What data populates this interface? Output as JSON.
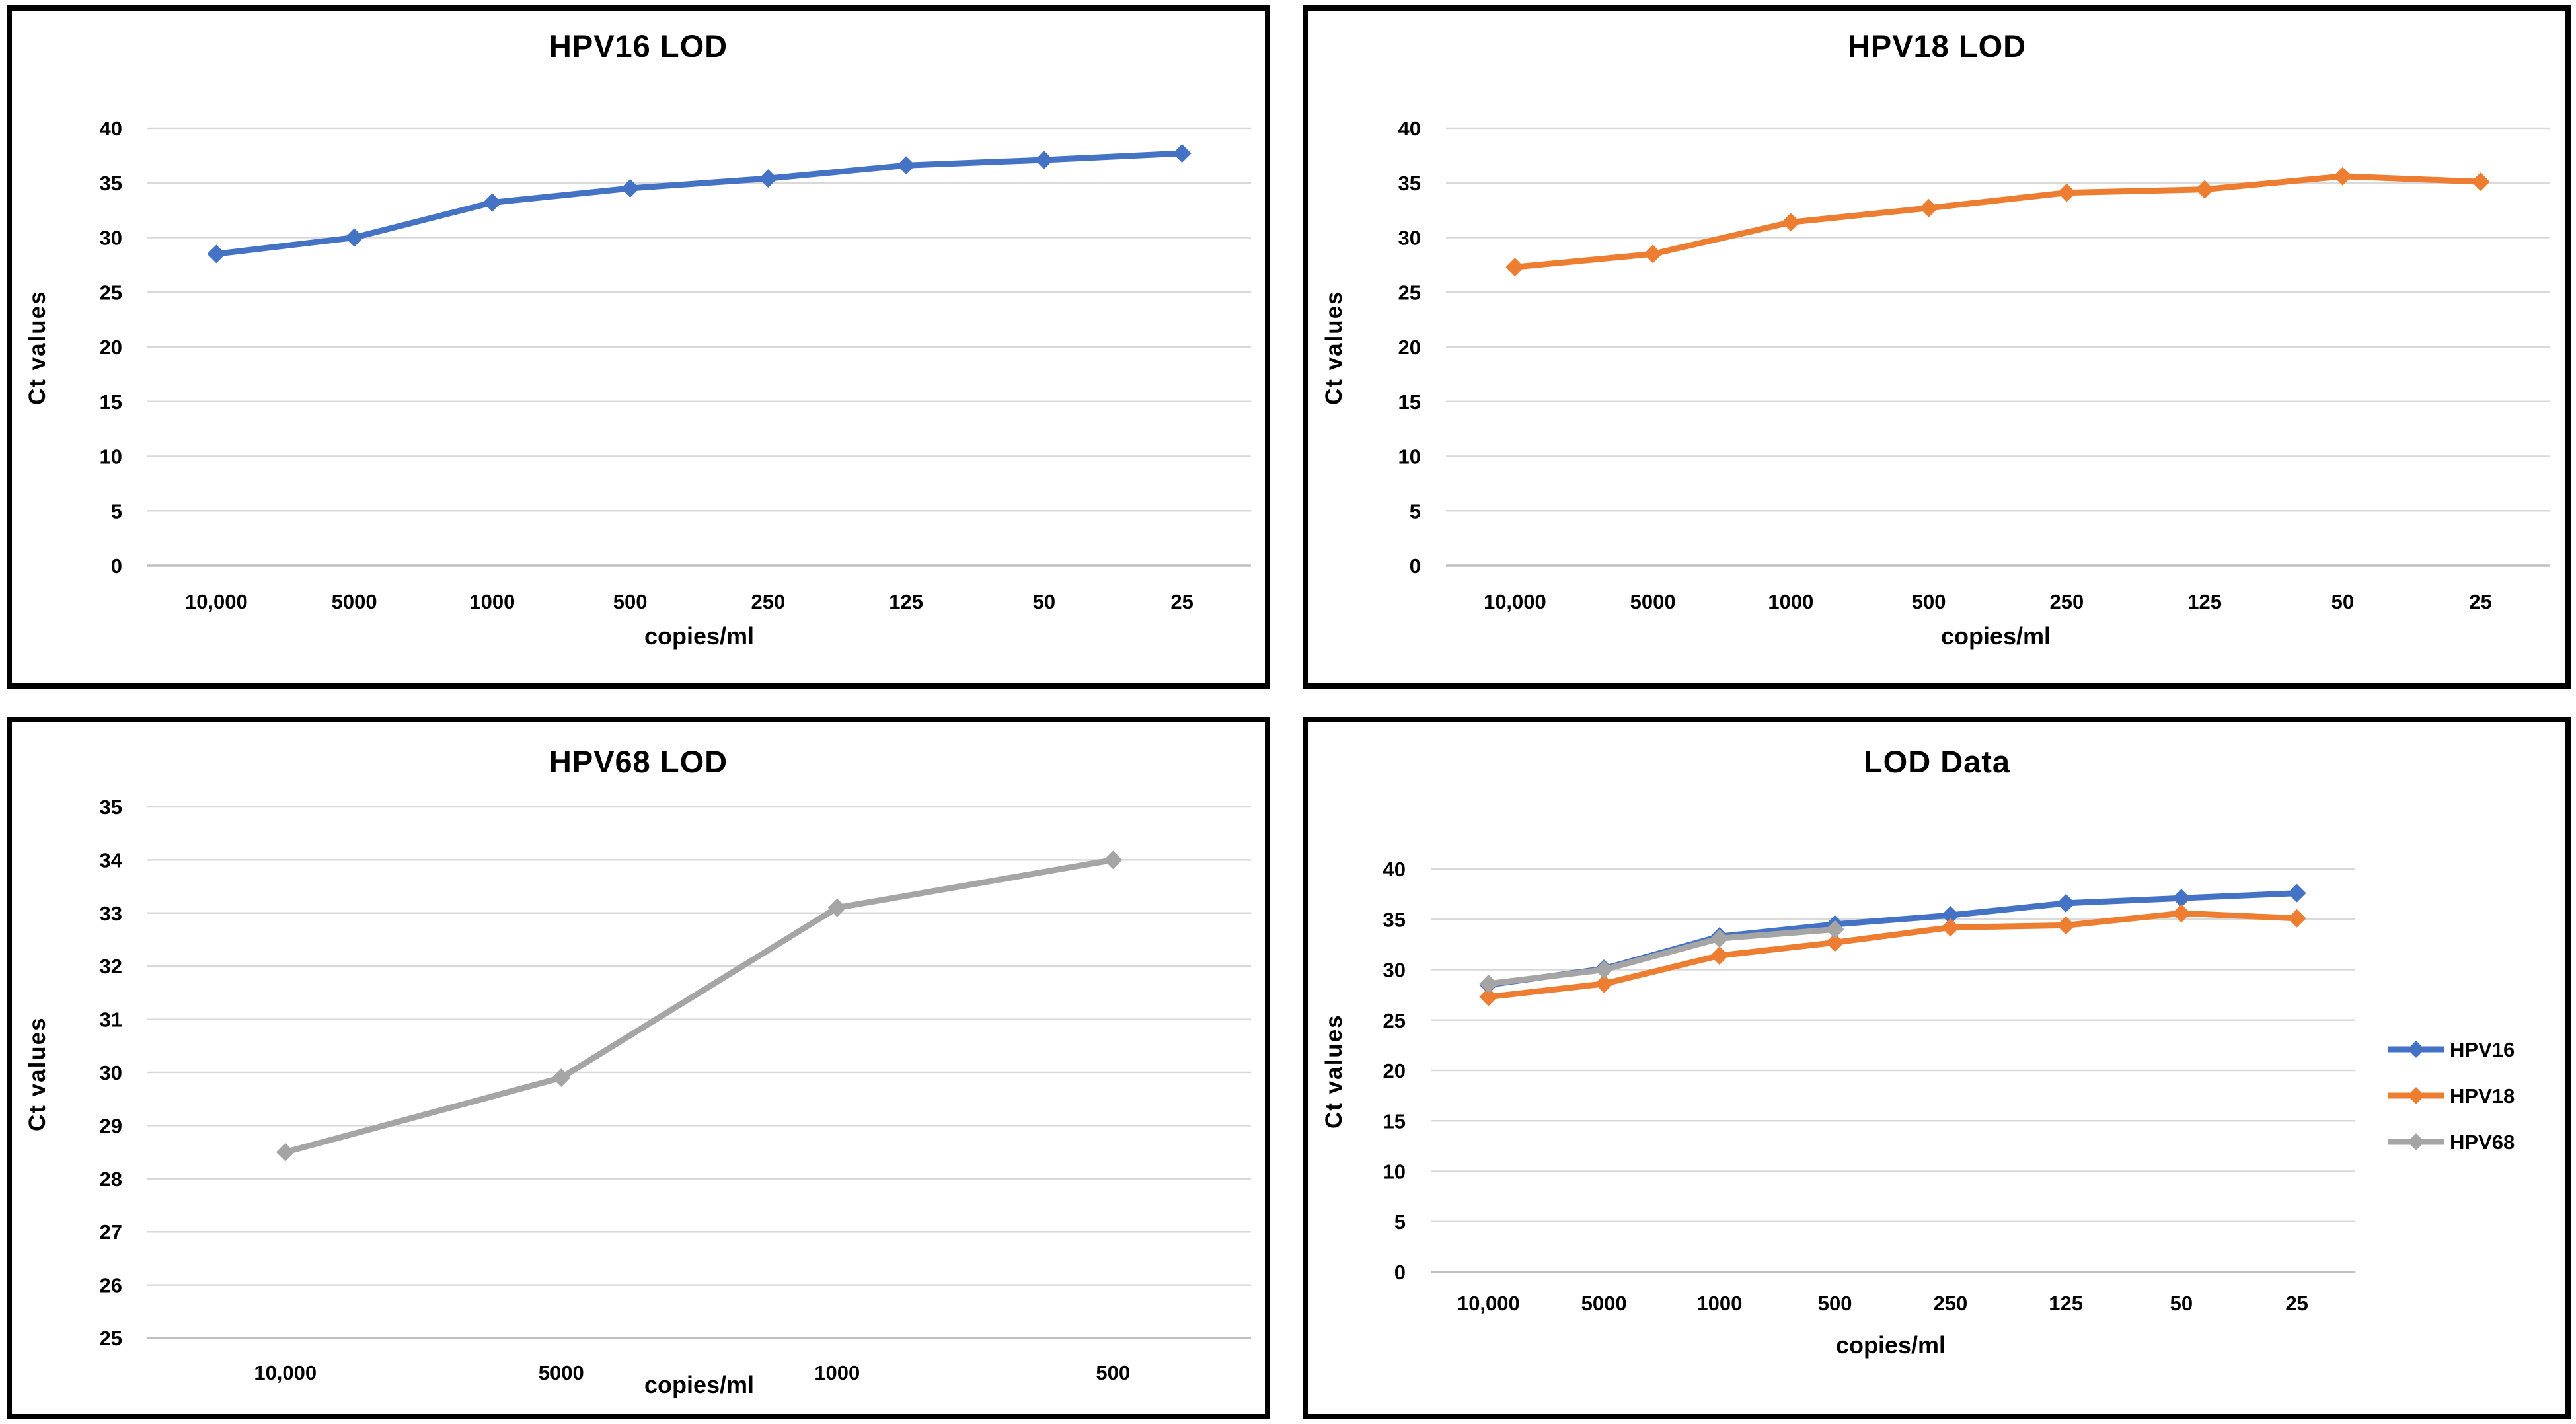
{
  "page": {
    "background": "#FFFFFF",
    "panel_border_color": "#000000",
    "gridline_color": "#D9D9D9",
    "axis_line_color": "#BFBFBF",
    "text_color": "#000000"
  },
  "chart_data": [
    {
      "type": "line",
      "title": "HPV16 LOD",
      "xlabel": "copies/ml",
      "ylabel": "Ct values",
      "categories": [
        "10,000",
        "5000",
        "1000",
        "500",
        "250",
        "125",
        "50",
        "25"
      ],
      "ylim": [
        0,
        40
      ],
      "ystep": 5,
      "grid": true,
      "marker": "diamond",
      "legend_position": "none",
      "series": [
        {
          "name": "HPV16",
          "color": "#4472C4",
          "values": [
            28.5,
            30.0,
            33.2,
            34.5,
            35.4,
            36.6,
            37.1,
            37.7
          ]
        }
      ]
    },
    {
      "type": "line",
      "title": "HPV18 LOD",
      "xlabel": "copies/ml",
      "ylabel": "Ct values",
      "categories": [
        "10,000",
        "5000",
        "1000",
        "500",
        "250",
        "125",
        "50",
        "25"
      ],
      "ylim": [
        0,
        40
      ],
      "ystep": 5,
      "grid": true,
      "marker": "diamond",
      "legend_position": "none",
      "series": [
        {
          "name": "HPV18",
          "color": "#ED7D31",
          "values": [
            27.3,
            28.5,
            31.4,
            32.7,
            34.1,
            34.4,
            35.6,
            35.1
          ]
        }
      ]
    },
    {
      "type": "line",
      "title": "HPV68 LOD",
      "xlabel": "copies/ml",
      "ylabel": "Ct values",
      "categories": [
        "10,000",
        "5000",
        "1000",
        "500"
      ],
      "ylim": [
        25,
        35
      ],
      "ystep": 1,
      "grid": true,
      "marker": "diamond",
      "legend_position": "none",
      "series": [
        {
          "name": "HPV68",
          "color": "#A5A5A5",
          "values": [
            28.5,
            29.9,
            33.1,
            34.0
          ]
        }
      ]
    },
    {
      "type": "line",
      "title": "LOD Data",
      "xlabel": "copies/ml",
      "ylabel": "Ct values",
      "categories": [
        "10,000",
        "5000",
        "1000",
        "500",
        "250",
        "125",
        "50",
        "25"
      ],
      "ylim": [
        0,
        40
      ],
      "ystep": 5,
      "grid": true,
      "marker": "diamond",
      "legend_position": "right",
      "series": [
        {
          "name": "HPV16",
          "color": "#4472C4",
          "values": [
            28.5,
            30.1,
            33.3,
            34.5,
            35.4,
            36.6,
            37.1,
            37.6
          ]
        },
        {
          "name": "HPV18",
          "color": "#ED7D31",
          "values": [
            27.3,
            28.6,
            31.4,
            32.7,
            34.2,
            34.4,
            35.6,
            35.1
          ]
        },
        {
          "name": "HPV68",
          "color": "#A5A5A5",
          "values": [
            28.6,
            30.0,
            33.1,
            34.0
          ]
        }
      ]
    }
  ]
}
